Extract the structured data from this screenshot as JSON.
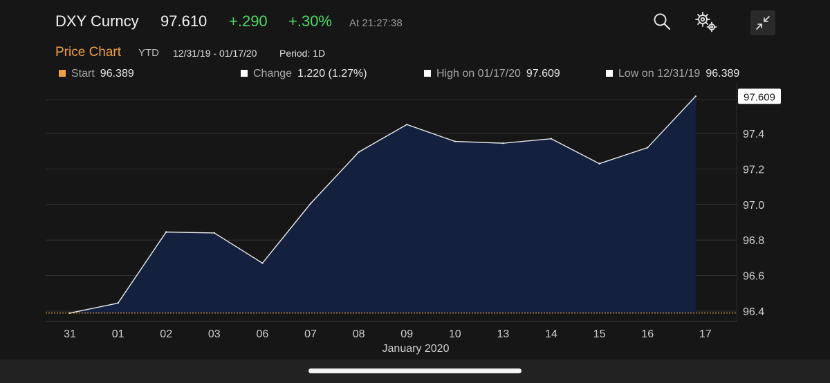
{
  "header": {
    "title": "DXY Curncy",
    "price": "97.610",
    "change": "+.290",
    "change_pct": "+.30%",
    "time": "At 21:27:38",
    "icons": [
      "search-icon",
      "gear-icon",
      "collapse-icon"
    ]
  },
  "subheader": {
    "title": "Price Chart",
    "range": "YTD",
    "dates": "12/31/19 - 01/17/20",
    "period": "Period: 1D"
  },
  "legend": {
    "start_label": "Start",
    "start_value": "96.389",
    "start_color": "#f0a040",
    "change_label": "Change",
    "change_value": "1.220 (1.27%)",
    "high_label": "High on 01/17/20",
    "high_value": "97.609",
    "low_label": "Low on 12/31/19",
    "low_value": "96.389"
  },
  "chart_data": {
    "type": "area",
    "categories": [
      "31",
      "01",
      "02",
      "03",
      "06",
      "07",
      "08",
      "09",
      "10",
      "13",
      "14",
      "15",
      "16",
      "17"
    ],
    "xlabel": "January 2020",
    "ylabel": "",
    "values": [
      96.389,
      96.445,
      96.845,
      96.84,
      96.67,
      97.005,
      97.295,
      97.45,
      97.355,
      97.345,
      97.37,
      97.23,
      97.32,
      97.609
    ],
    "ylim": [
      96.35,
      97.62
    ],
    "yticks": [
      96.4,
      96.6,
      96.8,
      97.0,
      97.2,
      97.4
    ],
    "ytick_labels": [
      "96.4",
      "96.6",
      "96.8",
      "97.0",
      "97.2",
      "97.4"
    ],
    "last_value_label": "97.609",
    "baseline_value": 96.389,
    "baseline_color": "#f0a040",
    "fill_color": "#13213f",
    "line_color": "#e8e8e8",
    "grid": true
  }
}
